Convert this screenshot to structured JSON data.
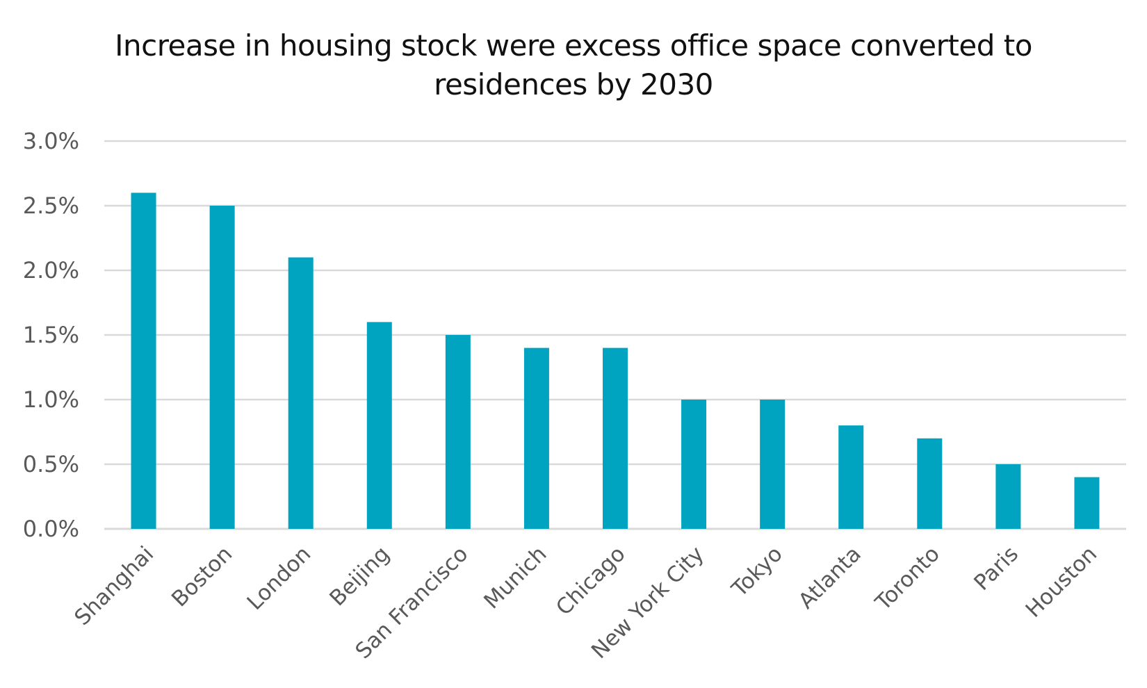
{
  "chart_data": {
    "type": "bar",
    "title_lines": [
      "Increase in housing stock were excess office space converted to",
      "residences by 2030"
    ],
    "categories": [
      "Shanghai",
      "Boston",
      "London",
      "Beijing",
      "San Francisco",
      "Munich",
      "Chicago",
      "New York City",
      "Tokyo",
      "Atlanta",
      "Toronto",
      "Paris",
      "Houston"
    ],
    "values": [
      2.6,
      2.5,
      2.1,
      1.6,
      1.5,
      1.4,
      1.4,
      1.0,
      1.0,
      0.8,
      0.7,
      0.5,
      0.4
    ],
    "ylim": [
      0,
      3.0
    ],
    "yticks": [
      0.0,
      0.5,
      1.0,
      1.5,
      2.0,
      2.5,
      3.0
    ],
    "ytick_labels": [
      "0.0%",
      "0.5%",
      "1.0%",
      "1.5%",
      "2.0%",
      "2.5%",
      "3.0%"
    ],
    "xlabel": "",
    "ylabel": "",
    "grid": true,
    "legend": "none",
    "bar_color": "#00A3C0",
    "grid_color": "#D9D9D9",
    "tick_label_color": "#595959",
    "title_color": "#111111"
  }
}
